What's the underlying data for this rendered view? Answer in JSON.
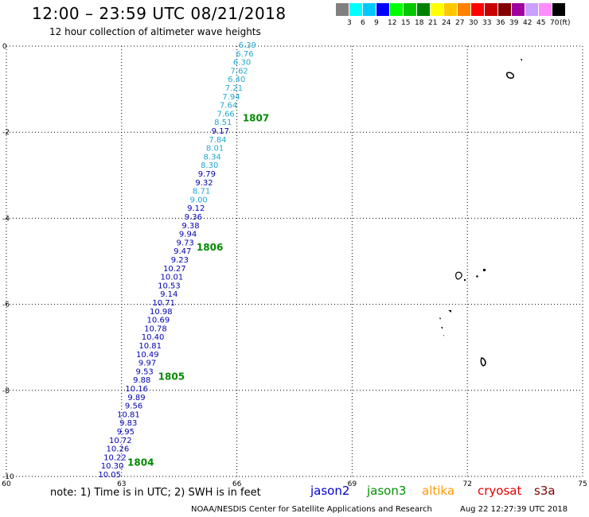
{
  "header": {
    "title": "12:00 – 23:59 UTC 08/21/2018",
    "subtitle": "12 hour collection of altimeter wave heights"
  },
  "legend": {
    "unit": "(ft)",
    "items": [
      {
        "label": "3",
        "color": "#808080"
      },
      {
        "label": "6",
        "color": "#00ffff"
      },
      {
        "label": "9",
        "color": "#00c8ff"
      },
      {
        "label": "12",
        "color": "#0000ff"
      },
      {
        "label": "15",
        "color": "#00ff00"
      },
      {
        "label": "18",
        "color": "#00c800"
      },
      {
        "label": "21",
        "color": "#008200"
      },
      {
        "label": "24",
        "color": "#ffff00"
      },
      {
        "label": "27",
        "color": "#ffc800"
      },
      {
        "label": "30",
        "color": "#ff8200"
      },
      {
        "label": "33",
        "color": "#ff0000"
      },
      {
        "label": "36",
        "color": "#c80000"
      },
      {
        "label": "39",
        "color": "#820000"
      },
      {
        "label": "42",
        "color": "#a000a0"
      },
      {
        "label": "45",
        "color": "#c8a0ff"
      },
      {
        "label": "70",
        "color": "#ff8cff"
      },
      {
        "label": "",
        "color": "#000000"
      }
    ]
  },
  "map": {
    "lon_range": [
      60,
      75
    ],
    "lat_range": [
      -10,
      0
    ],
    "lon_ticks": [
      "60",
      "63",
      "66",
      "69",
      "72",
      "75"
    ],
    "lat_ticks": [
      "0",
      "-2",
      "-4",
      "-6",
      "-8",
      "-10"
    ],
    "grid": true,
    "track_colors": {
      "light": "#20a8d0",
      "dark": "#0000b4"
    },
    "swh_points": [
      {
        "v": "6.39",
        "c": "light"
      },
      {
        "v": "6.76",
        "c": "light"
      },
      {
        "v": "6.30",
        "c": "light"
      },
      {
        "v": "7.62",
        "c": "light"
      },
      {
        "v": "6.40",
        "c": "light"
      },
      {
        "v": "7.21",
        "c": "light"
      },
      {
        "v": "7.94",
        "c": "light"
      },
      {
        "v": "7.64",
        "c": "light"
      },
      {
        "v": "7.66",
        "c": "light"
      },
      {
        "v": "8.51",
        "c": "light"
      },
      {
        "v": "9.17",
        "c": "dark"
      },
      {
        "v": "7.84",
        "c": "light"
      },
      {
        "v": "8.01",
        "c": "light"
      },
      {
        "v": "8.34",
        "c": "light"
      },
      {
        "v": "8.30",
        "c": "light"
      },
      {
        "v": "9.79",
        "c": "dark"
      },
      {
        "v": "9.32",
        "c": "dark"
      },
      {
        "v": "8.71",
        "c": "light"
      },
      {
        "v": "9.00",
        "c": "light"
      },
      {
        "v": "9.12",
        "c": "dark"
      },
      {
        "v": "9.36",
        "c": "dark"
      },
      {
        "v": "9.38",
        "c": "dark"
      },
      {
        "v": "9.94",
        "c": "dark"
      },
      {
        "v": "9.73",
        "c": "dark"
      },
      {
        "v": "9.47",
        "c": "dark"
      },
      {
        "v": "9.23",
        "c": "dark"
      },
      {
        "v": "10.27",
        "c": "dark"
      },
      {
        "v": "10.01",
        "c": "dark"
      },
      {
        "v": "10.53",
        "c": "dark"
      },
      {
        "v": "9.14",
        "c": "dark"
      },
      {
        "v": "10.71",
        "c": "dark"
      },
      {
        "v": "10.98",
        "c": "dark"
      },
      {
        "v": "10.69",
        "c": "dark"
      },
      {
        "v": "10.78",
        "c": "dark"
      },
      {
        "v": "10.40",
        "c": "dark"
      },
      {
        "v": "10.81",
        "c": "dark"
      },
      {
        "v": "10.49",
        "c": "dark"
      },
      {
        "v": "9.97",
        "c": "dark"
      },
      {
        "v": "9.53",
        "c": "dark"
      },
      {
        "v": "9.88",
        "c": "dark"
      },
      {
        "v": "10.16",
        "c": "dark"
      },
      {
        "v": "9.89",
        "c": "dark"
      },
      {
        "v": "9.56",
        "c": "dark"
      },
      {
        "v": "10.81",
        "c": "dark"
      },
      {
        "v": "9.83",
        "c": "dark"
      },
      {
        "v": "9.95",
        "c": "dark"
      },
      {
        "v": "10.72",
        "c": "dark"
      },
      {
        "v": "10.26",
        "c": "dark"
      },
      {
        "v": "10.22",
        "c": "dark"
      },
      {
        "v": "10.30",
        "c": "dark"
      },
      {
        "v": "10.05",
        "c": "dark"
      }
    ],
    "pass_times": [
      {
        "label": "1807",
        "lat": -1.75,
        "lon": 66.15
      },
      {
        "label": "1806",
        "lat": -4.75,
        "lon": 64.95
      },
      {
        "label": "1805",
        "lat": -7.75,
        "lon": 63.95
      },
      {
        "label": "1804",
        "lat": -9.75,
        "lon": 63.15
      }
    ]
  },
  "footer": {
    "note": "note:  1) Time is in UTC;  2) SWH is in feet",
    "satellites": [
      {
        "name": "jason2",
        "color": "#0000d0"
      },
      {
        "name": "jason3",
        "color": "#009000"
      },
      {
        "name": "altika",
        "color": "#ff9900"
      },
      {
        "name": "cryosat",
        "color": "#e00000"
      },
      {
        "name": "s3a",
        "color": "#800000"
      }
    ],
    "credit": "NOAA/NESDIS Center for Satellite Applications and Research",
    "timestamp": "Aug 22 12:27:39 UTC 2018"
  }
}
